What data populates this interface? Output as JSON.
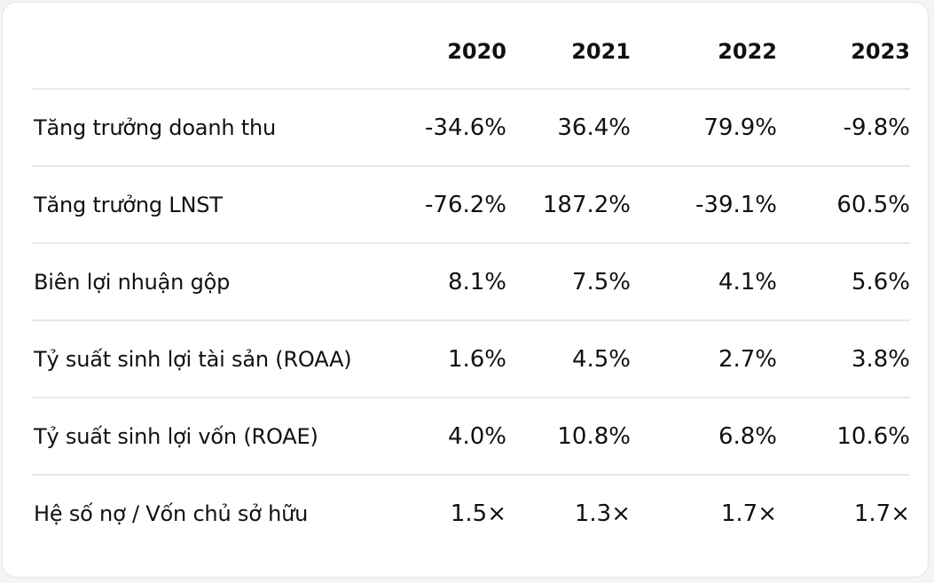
{
  "table": {
    "columns": [
      "2020",
      "2021",
      "2022",
      "2023"
    ],
    "rows": [
      {
        "label": "Tăng trưởng doanh thu",
        "values": [
          "-34.6%",
          "36.4%",
          "79.9%",
          "-9.8%"
        ]
      },
      {
        "label": "Tăng trưởng LNST",
        "values": [
          "-76.2%",
          "187.2%",
          "-39.1%",
          "60.5%"
        ]
      },
      {
        "label": "Biên lợi nhuận gộp",
        "values": [
          "8.1%",
          "7.5%",
          "4.1%",
          "5.6%"
        ]
      },
      {
        "label": "Tỷ suất sinh lợi tài sản (ROAA)",
        "values": [
          "1.6%",
          "4.5%",
          "2.7%",
          "3.8%"
        ]
      },
      {
        "label": "Tỷ suất sinh lợi vốn (ROAE)",
        "values": [
          "4.0%",
          "10.8%",
          "6.8%",
          "10.6%"
        ]
      },
      {
        "label": "Hệ số nợ / Vốn chủ sở hữu",
        "values": [
          "1.5×",
          "1.3×",
          "1.7×",
          "1.7×"
        ]
      }
    ]
  }
}
